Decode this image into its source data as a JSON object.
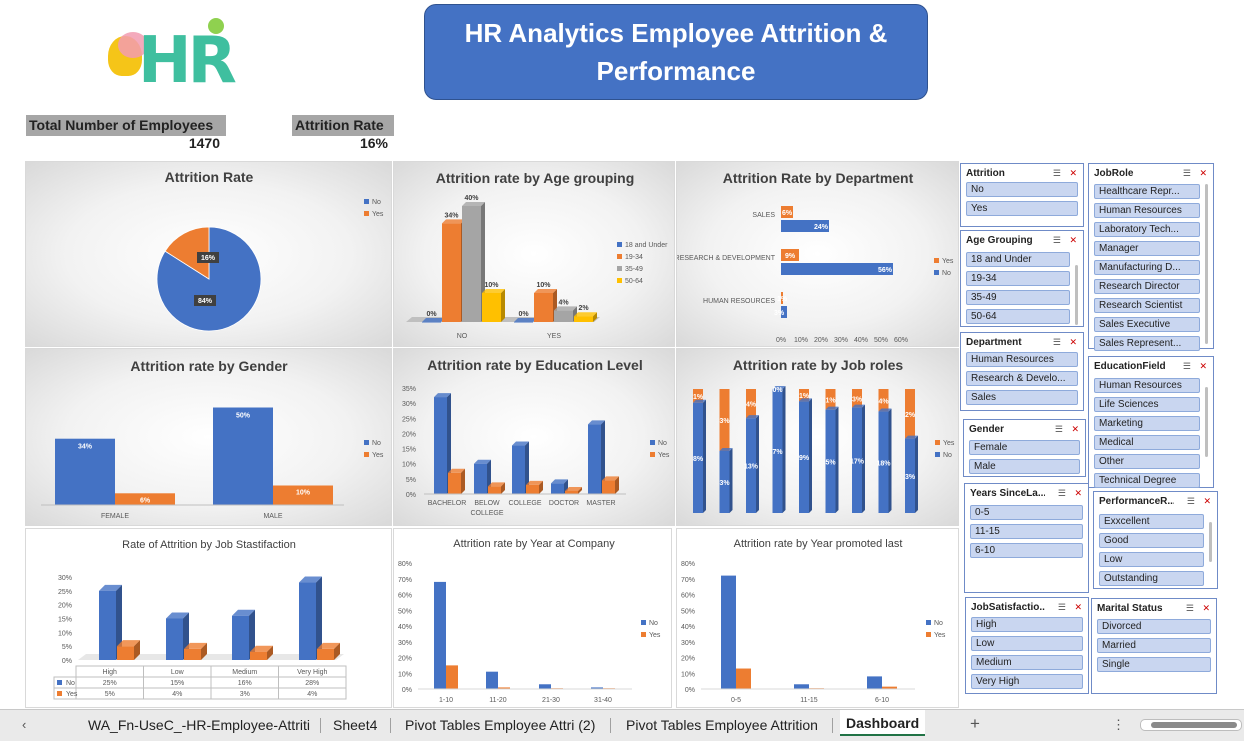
{
  "dashboard": {
    "title": "HR Analytics Employee Attrition & Performance",
    "logo_text": "HR",
    "kpis": {
      "total_label": "Total Number of Employees",
      "total_value": "1470",
      "attrition_label": "Attrition Rate",
      "attrition_value": "16%"
    }
  },
  "colors": {
    "no": "#4472c4",
    "yes": "#ed7d31",
    "gray": "#a5a5a5",
    "gold": "#ffc000",
    "title_bg": "#4472c4"
  },
  "chart_data": [
    {
      "id": "attrition_rate",
      "type": "pie",
      "title": "Attrition Rate",
      "legend": [
        "No",
        "Yes"
      ],
      "legend_position": "right",
      "slices": [
        {
          "name": "No",
          "value": 84,
          "label": "84%"
        },
        {
          "name": "Yes",
          "value": 16,
          "label": "16%"
        }
      ]
    },
    {
      "id": "age_grouping",
      "type": "bar",
      "title": "Attrition rate by Age grouping",
      "categories": [
        "NO",
        "YES"
      ],
      "legend_position": "right",
      "series": [
        {
          "name": "18 and Under",
          "values": [
            0,
            0
          ],
          "labels": [
            "0%",
            "0%"
          ]
        },
        {
          "name": "19-34",
          "values": [
            34,
            10
          ],
          "labels": [
            "34%",
            "10%"
          ]
        },
        {
          "name": "35-49",
          "values": [
            40,
            4
          ],
          "labels": [
            "40%",
            "4%"
          ]
        },
        {
          "name": "50-64",
          "values": [
            10,
            2
          ],
          "labels": [
            "10%",
            "2%"
          ]
        }
      ]
    },
    {
      "id": "department",
      "type": "bar",
      "orientation": "horizontal",
      "title": "Attrition Rate by Department",
      "categories": [
        "SALES",
        "RESEARCH & DEVELOPMENT",
        "HUMAN RESOURCES"
      ],
      "x_ticks": [
        "0%",
        "10%",
        "20%",
        "30%",
        "40%",
        "50%",
        "60%"
      ],
      "xlim": [
        0,
        60
      ],
      "legend_position": "right",
      "series": [
        {
          "name": "Yes",
          "values": [
            6,
            9,
            1
          ],
          "labels": [
            "6%",
            "9%",
            "1%"
          ]
        },
        {
          "name": "No",
          "values": [
            24,
            56,
            3
          ],
          "labels": [
            "24%",
            "56%",
            "3%"
          ]
        }
      ]
    },
    {
      "id": "gender",
      "type": "bar",
      "title": "Attrition rate by Gender",
      "categories": [
        "FEMALE",
        "MALE"
      ],
      "legend_position": "right",
      "series": [
        {
          "name": "No",
          "values": [
            34,
            50
          ],
          "labels": [
            "34%",
            "50%"
          ]
        },
        {
          "name": "Yes",
          "values": [
            6,
            10
          ],
          "labels": [
            "6%",
            "10%"
          ]
        }
      ]
    },
    {
      "id": "education",
      "type": "bar",
      "title": "Attrition rate by Education Level",
      "categories": [
        "BACHELOR",
        "BELOW COLLEGE",
        "COLLEGE",
        "DOCTOR",
        "MASTER"
      ],
      "category_lines": [
        [
          "BACHELOR"
        ],
        [
          "BELOW",
          "COLLEGE"
        ],
        [
          "COLLEGE"
        ],
        [
          "DOCTOR"
        ],
        [
          "MASTER"
        ]
      ],
      "y_ticks": [
        "0%",
        "5%",
        "10%",
        "15%",
        "20%",
        "25%",
        "30%",
        "35%"
      ],
      "ylim": [
        0,
        35
      ],
      "legend_position": "right",
      "series": [
        {
          "name": "No",
          "values": [
            32,
            10,
            16,
            3.5,
            23
          ]
        },
        {
          "name": "Yes",
          "values": [
            7,
            2.5,
            3,
            1,
            4.5
          ]
        }
      ]
    },
    {
      "id": "job_roles",
      "type": "bar",
      "stacked": true,
      "percent_stacked": true,
      "title": "Attrition rate by Job roles",
      "legend_position": "right",
      "series": [
        {
          "name": "Yes",
          "values": [
            1,
            3,
            4,
            0,
            1,
            1,
            3,
            4,
            2
          ]
        },
        {
          "name": "No",
          "values": [
            8,
            3,
            13,
            7,
            9,
            5,
            17,
            18,
            3
          ]
        }
      ],
      "yes_labels": [
        "1%",
        "3%",
        "4%",
        "0%",
        "1%",
        "1%",
        "3%",
        "4%",
        "2%"
      ],
      "no_labels": [
        "8%",
        "3%",
        "13%",
        "7%",
        "9%",
        "5%",
        "17%",
        "18%",
        "3%"
      ]
    },
    {
      "id": "job_satisfaction",
      "type": "bar",
      "title": "Rate of Attrition by Job Stastifaction",
      "categories": [
        "High",
        "Low",
        "Medium",
        "Very High"
      ],
      "y_ticks": [
        "0%",
        "5%",
        "10%",
        "15%",
        "20%",
        "25%",
        "30%"
      ],
      "ylim": [
        0,
        30
      ],
      "legend_position": "table",
      "series": [
        {
          "name": "No",
          "values": [
            25,
            15,
            16,
            28
          ],
          "labels": [
            "25%",
            "15%",
            "16%",
            "28%"
          ]
        },
        {
          "name": "Yes",
          "values": [
            5,
            4,
            3,
            4
          ],
          "labels": [
            "5%",
            "4%",
            "3%",
            "4%"
          ]
        }
      ]
    },
    {
      "id": "year_at_company",
      "type": "bar",
      "title": "Attrition rate by Year at Company",
      "categories": [
        "1-10",
        "11-20",
        "21-30",
        "31-40"
      ],
      "y_ticks": [
        "0%",
        "10%",
        "20%",
        "30%",
        "40%",
        "50%",
        "60%",
        "70%",
        "80%"
      ],
      "ylim": [
        0,
        80
      ],
      "legend_position": "right",
      "series": [
        {
          "name": "No",
          "values": [
            68,
            11,
            3,
            1
          ]
        },
        {
          "name": "Yes",
          "values": [
            15,
            1,
            0.5,
            0.5
          ]
        }
      ]
    },
    {
      "id": "year_promoted",
      "type": "bar",
      "title": "Attrition rate by Year promoted last",
      "categories": [
        "0-5",
        "11-15",
        "6-10"
      ],
      "y_ticks": [
        "0%",
        "10%",
        "20%",
        "30%",
        "40%",
        "50%",
        "60%",
        "70%",
        "80%"
      ],
      "ylim": [
        0,
        80
      ],
      "legend_position": "right",
      "series": [
        {
          "name": "No",
          "values": [
            72,
            3,
            8
          ]
        },
        {
          "name": "Yes",
          "values": [
            13,
            0.5,
            1.5
          ]
        }
      ]
    }
  ],
  "slicers": [
    {
      "id": "attrition",
      "title": "Attrition",
      "items": [
        "No",
        "Yes"
      ]
    },
    {
      "id": "jobrole",
      "title": "JobRole",
      "items": [
        "Healthcare Repr...",
        "Human Resources",
        "Laboratory Tech...",
        "Manager",
        "Manufacturing D...",
        "Research Director",
        "Research Scientist",
        "Sales Executive",
        "Sales Represent..."
      ]
    },
    {
      "id": "age",
      "title": "Age Grouping",
      "items": [
        "18 and Under",
        "19-34",
        "35-49",
        "50-64"
      ]
    },
    {
      "id": "department",
      "title": "Department",
      "items": [
        "Human Resources",
        "Research & Develo...",
        "Sales"
      ]
    },
    {
      "id": "educationfield",
      "title": "EducationField",
      "items": [
        "Human Resources",
        "Life Sciences",
        "Marketing",
        "Medical",
        "Other",
        "Technical Degree"
      ]
    },
    {
      "id": "gender",
      "title": "Gender",
      "items": [
        "Female",
        "Male"
      ]
    },
    {
      "id": "years",
      "title": "Years SinceLa...",
      "items": [
        "0-5",
        "11-15",
        "6-10"
      ]
    },
    {
      "id": "performance",
      "title": "PerformanceR...",
      "items": [
        "Exxcellent",
        "Good",
        "Low",
        "Outstanding"
      ]
    },
    {
      "id": "jobsat",
      "title": "JobSatisfactio...",
      "items": [
        "High",
        "Low",
        "Medium",
        "Very High"
      ]
    },
    {
      "id": "marital",
      "title": "Marital Status",
      "items": [
        "Divorced",
        "Married",
        "Single"
      ]
    }
  ],
  "sheet_tabs": [
    "WA_Fn-UseC_-HR-Employee-Attriti",
    "Sheet4",
    "Pivot Tables Employee Attri (2)",
    "Pivot Tables Employee Attrition",
    "Dashboard"
  ],
  "active_tab": "Dashboard",
  "ui": {
    "add_sheet_icon": "+",
    "nav_prev_icon": "‹",
    "more_icon": "⋮"
  }
}
